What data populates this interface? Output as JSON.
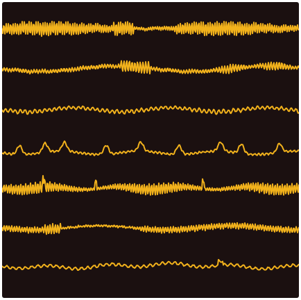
{
  "figure": {
    "trace_color": "#f2b21c",
    "background_color": "#1b1010",
    "frame_color": "#ffffff",
    "waveforms": [
      {
        "kind": "dense-fast-high-amplitude"
      },
      {
        "kind": "medium-fast-burst-mid"
      },
      {
        "kind": "low-amplitude-irregular"
      },
      {
        "kind": "periodic-sharp-spikes"
      },
      {
        "kind": "dense-fast-with-spikes"
      },
      {
        "kind": "fast-with-gap-segment"
      },
      {
        "kind": "low-amplitude-slow"
      }
    ]
  }
}
